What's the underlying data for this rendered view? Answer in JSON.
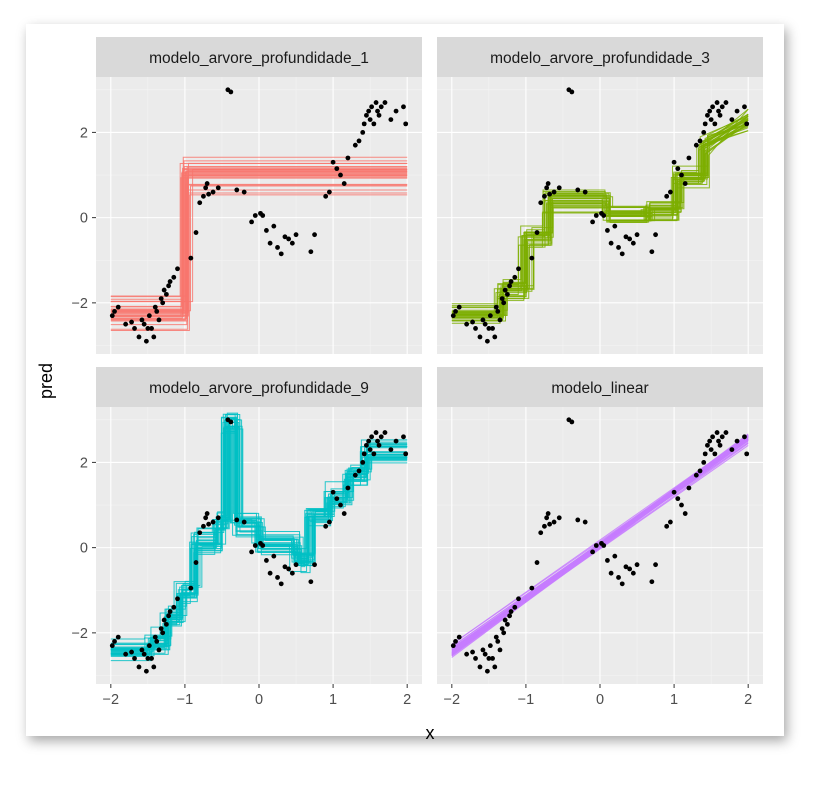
{
  "chart_data": {
    "type": "line",
    "layout": "facet_wrap 2x2",
    "xlabel": "x",
    "ylabel": "pred",
    "xlim": [
      -2.2,
      2.2
    ],
    "ylim": [
      -3.2,
      3.3
    ],
    "x_ticks": [
      -2,
      -1,
      0,
      1,
      2
    ],
    "x_tick_labels": [
      "−2",
      "−1",
      "0",
      "1",
      "2"
    ],
    "y_ticks": [
      -2,
      0,
      2
    ],
    "y_tick_labels": [
      "−2",
      "0",
      "2"
    ],
    "grid": true,
    "points": {
      "x": [
        -1.98,
        -1.95,
        -1.9,
        -1.8,
        -1.72,
        -1.68,
        -1.62,
        -1.58,
        -1.55,
        -1.52,
        -1.5,
        -1.48,
        -1.45,
        -1.42,
        -1.4,
        -1.38,
        -1.35,
        -1.32,
        -1.3,
        -1.28,
        -1.25,
        -1.22,
        -1.2,
        -1.15,
        -1.1,
        -0.92,
        -0.85,
        -0.8,
        -0.75,
        -0.72,
        -0.7,
        -0.68,
        -0.62,
        -0.55,
        -0.42,
        -0.38,
        -0.3,
        -0.2,
        -0.1,
        -0.05,
        0.02,
        0.05,
        0.1,
        0.15,
        0.2,
        0.25,
        0.3,
        0.35,
        0.4,
        0.45,
        0.5,
        0.7,
        0.75,
        0.9,
        0.95,
        1.0,
        1.05,
        1.1,
        1.15,
        1.2,
        1.3,
        1.35,
        1.4,
        1.42,
        1.45,
        1.48,
        1.5,
        1.52,
        1.55,
        1.58,
        1.6,
        1.62,
        1.65,
        1.7,
        1.78,
        1.85,
        1.95,
        1.98
      ],
      "y": [
        -2.3,
        -2.2,
        -2.1,
        -2.5,
        -2.45,
        -2.6,
        -2.8,
        -2.4,
        -2.5,
        -2.9,
        -2.6,
        -2.3,
        -2.6,
        -2.8,
        -2.1,
        -2.2,
        -2.4,
        -1.9,
        -2.0,
        -1.7,
        -1.8,
        -1.6,
        -1.5,
        -1.4,
        -1.2,
        -0.95,
        -0.35,
        0.35,
        0.5,
        0.7,
        0.8,
        0.55,
        0.6,
        0.7,
        3.0,
        2.95,
        0.65,
        0.6,
        -0.1,
        0.05,
        0.1,
        0.05,
        -0.3,
        -0.6,
        -0.2,
        -0.7,
        -0.85,
        -0.45,
        -0.5,
        -0.6,
        -0.4,
        -0.8,
        -0.4,
        0.5,
        0.6,
        1.3,
        1.15,
        1.0,
        0.8,
        1.4,
        1.7,
        1.8,
        2.0,
        2.2,
        2.4,
        2.5,
        2.3,
        2.6,
        2.2,
        2.7,
        2.5,
        2.4,
        2.6,
        2.7,
        2.3,
        2.5,
        2.6,
        2.2
      ]
    },
    "panels": [
      {
        "title": "modelo_arvore_profundidade_1",
        "color": "#F8766D",
        "model": "tree",
        "depth": 1
      },
      {
        "title": "modelo_arvore_profundidade_3",
        "color": "#7CAE00",
        "model": "tree",
        "depth": 3
      },
      {
        "title": "modelo_arvore_profundidade_9",
        "color": "#00BFC4",
        "model": "tree",
        "depth": 9
      },
      {
        "title": "modelo_linear",
        "color": "#C77CFF",
        "model": "linear",
        "slope": 1.24,
        "intercept": 0.05
      }
    ]
  }
}
